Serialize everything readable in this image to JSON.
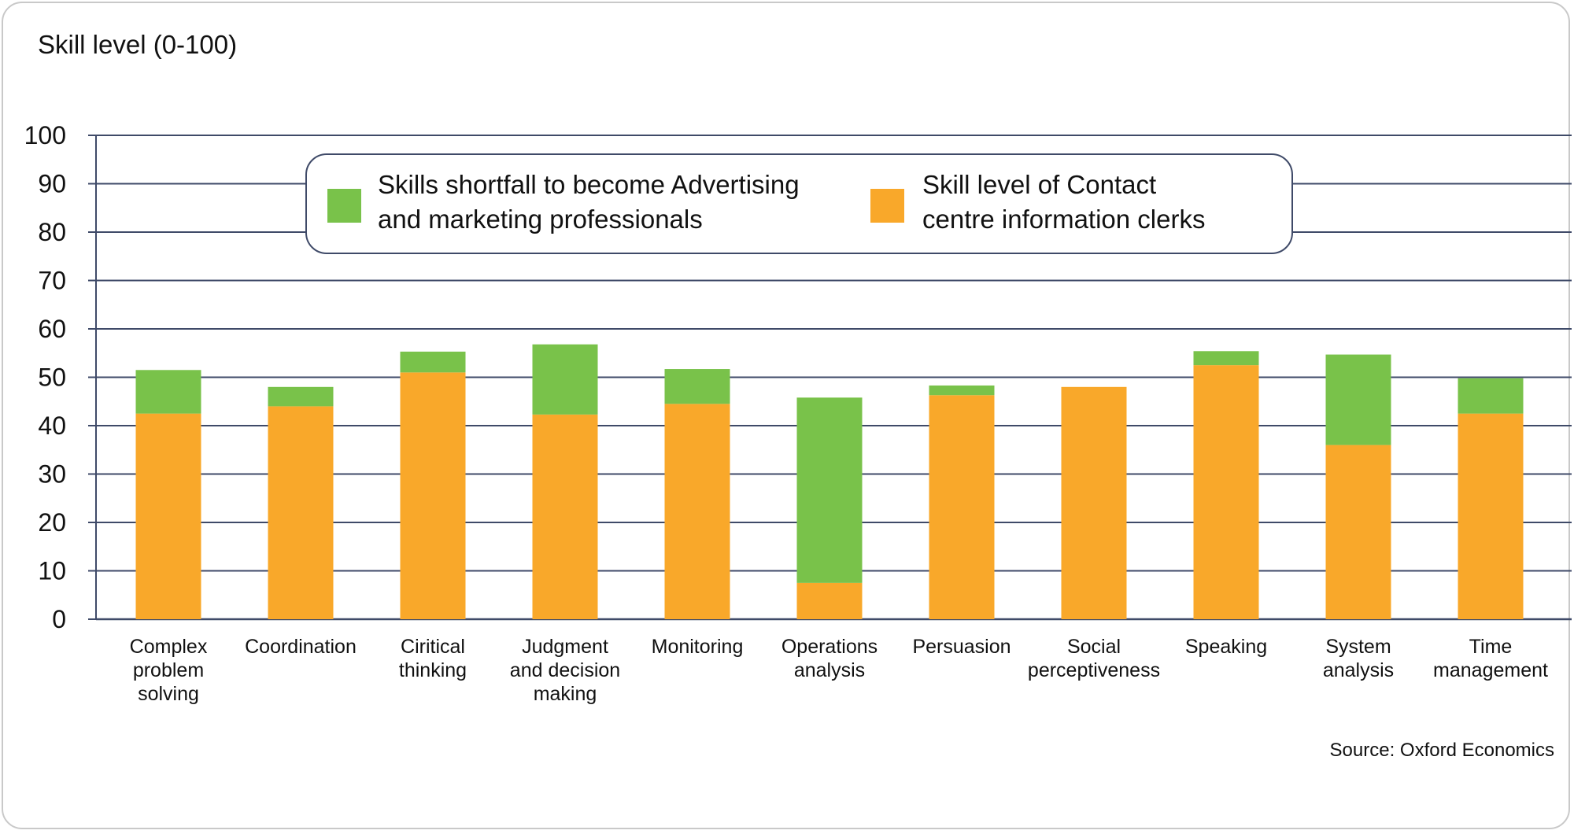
{
  "chart_data": {
    "type": "bar",
    "stacked": true,
    "ylabel": "Skill level (0-100)",
    "ylim": [
      0,
      100
    ],
    "yticks": [
      0,
      10,
      20,
      30,
      40,
      50,
      60,
      70,
      80,
      90,
      100
    ],
    "grid": true,
    "legend_position": "top-center",
    "categories": [
      "Complex problem solving",
      "Coordination",
      "Ciritical thinking",
      "Judgment and decision making",
      "Monitoring",
      "Operations analysis",
      "Persuasion",
      "Social perceptiveness",
      "Speaking",
      "System analysis",
      "Time management"
    ],
    "category_lines": [
      [
        "Complex",
        "problem",
        "solving"
      ],
      [
        "Coordination"
      ],
      [
        "Ciritical",
        "thinking"
      ],
      [
        "Judgment",
        "and decision",
        "making"
      ],
      [
        "Monitoring"
      ],
      [
        "Operations",
        "analysis"
      ],
      [
        "Persuasion"
      ],
      [
        "Social",
        "perceptiveness"
      ],
      [
        "Speaking"
      ],
      [
        "System",
        "analysis"
      ],
      [
        "Time",
        "management"
      ]
    ],
    "series": [
      {
        "name": "Skill level of Contact centre information clerks",
        "legend_lines": [
          "Skill level of Contact",
          "centre information clerks"
        ],
        "color": "#F9A82A",
        "values": [
          42.5,
          44,
          51,
          42.3,
          44.5,
          7.5,
          46.3,
          48,
          52.5,
          36,
          42.5
        ]
      },
      {
        "name": "Skills shortfall to become Advertising and marketing professionals",
        "legend_lines": [
          "Skills shortfall to become Advertising",
          "and marketing professionals"
        ],
        "color": "#79C24A",
        "values": [
          9,
          4,
          4.3,
          14.5,
          7.2,
          38.3,
          2,
          0,
          2.9,
          18.7,
          7.3
        ]
      }
    ]
  },
  "source": "Source: Oxford Economics",
  "colors": {
    "grid": "#3F4A68",
    "axis": "#3F4A68",
    "legend_border": "#3F4A68",
    "frame": "#C9C9C9"
  }
}
